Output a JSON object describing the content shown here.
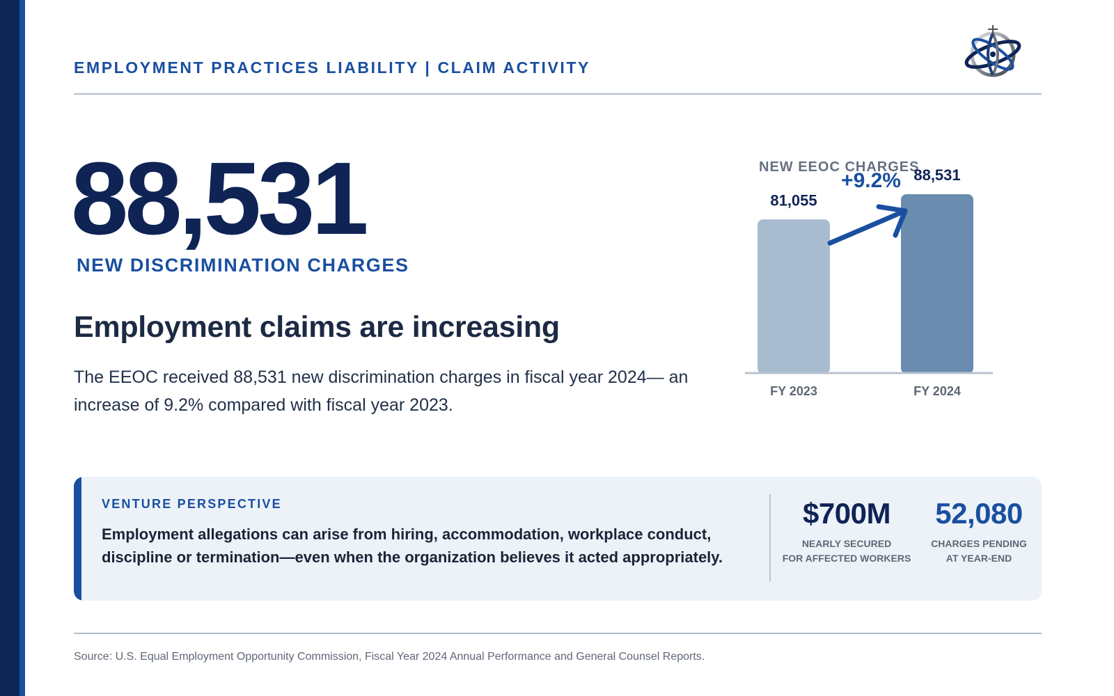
{
  "header": {
    "title": "EMPLOYMENT PRACTICES LIABILITY | CLAIM ACTIVITY"
  },
  "logo": {
    "icon": "globe-orbit-icon"
  },
  "hero": {
    "number": "88,531",
    "label": "NEW DISCRIMINATION CHARGES"
  },
  "headline": "Employment claims are increasing",
  "body": "The EEOC received 88,531 new discrimination charges in fiscal year 2024— an increase of 9.2% compared with fiscal year 2023.",
  "chart_data": {
    "type": "bar",
    "title": "NEW EEOC CHARGES",
    "categories": [
      "FY 2023",
      "FY 2024"
    ],
    "values": [
      81055,
      88531
    ],
    "value_labels": [
      "81,055",
      "88,531"
    ],
    "change_label": "+9.2%",
    "ylim": [
      50000,
      88531
    ],
    "grid": false,
    "colors": {
      "bars": [
        "#a8bcd0",
        "#6a8daf"
      ],
      "arrow": "#1a4fa0",
      "axis": "#b9c4cf"
    }
  },
  "callout": {
    "kicker": "VENTURE PERSPECTIVE",
    "text": "Employment allegations can arise from hiring, accommodation, workplace conduct, discipline or termination—even when the organization believes it acted appropriately.",
    "stats": [
      {
        "value": "$700M",
        "label_line1": "NEARLY SECURED",
        "label_line2": "FOR AFFECTED WORKERS"
      },
      {
        "value": "52,080",
        "label_line1": "CHARGES PENDING",
        "label_line2": "AT YEAR-END"
      }
    ]
  },
  "source": "Source: U.S. Equal Employment Opportunity Commission, Fiscal Year 2024 Annual Performance and General Counsel Reports.",
  "colors": {
    "navy": "#0f2455",
    "accent_blue": "#1a4fa0",
    "callout_bg": "#edf2f9"
  }
}
